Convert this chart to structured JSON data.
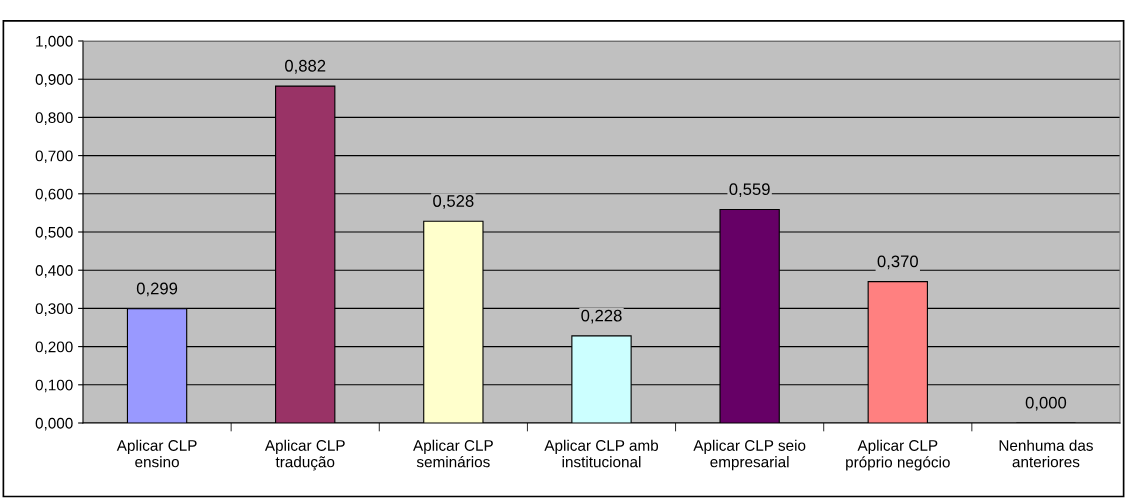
{
  "chart_data": {
    "type": "bar",
    "categories": [
      "Aplicar CLP\nensino",
      "Aplicar CLP\ntradução",
      "Aplicar CLP\nseminários",
      "Aplicar CLP amb\ninstitucional",
      "Aplicar CLP seio\nempresarial",
      "Aplicar CLP\npróprio negócio",
      "Nenhuma das\nanteriores"
    ],
    "values": [
      0.299,
      0.882,
      0.528,
      0.228,
      0.559,
      0.37,
      0.0
    ],
    "colors": [
      "#9999ff",
      "#993366",
      "#ffffcc",
      "#ccffff",
      "#660066",
      "#ff8080",
      "#000000"
    ],
    "value_labels": [
      "0,299",
      "0,882",
      "0,528",
      "0,228",
      "0,559",
      "0,370",
      "0,000"
    ],
    "ylim": [
      0,
      1
    ],
    "yticks": [
      {
        "value": 0,
        "label": "0,000"
      },
      {
        "value": 0.1,
        "label": "0,100"
      },
      {
        "value": 0.2,
        "label": "0,200"
      },
      {
        "value": 0.3,
        "label": "0,300"
      },
      {
        "value": 0.4,
        "label": "0,400"
      },
      {
        "value": 0.5,
        "label": "0,500"
      },
      {
        "value": 0.6,
        "label": "0,600"
      },
      {
        "value": 0.7,
        "label": "0,700"
      },
      {
        "value": 0.8,
        "label": "0,800"
      },
      {
        "value": 0.9,
        "label": "0,900"
      },
      {
        "value": 1,
        "label": "1,000"
      }
    ],
    "grid": "y",
    "legend": false
  }
}
